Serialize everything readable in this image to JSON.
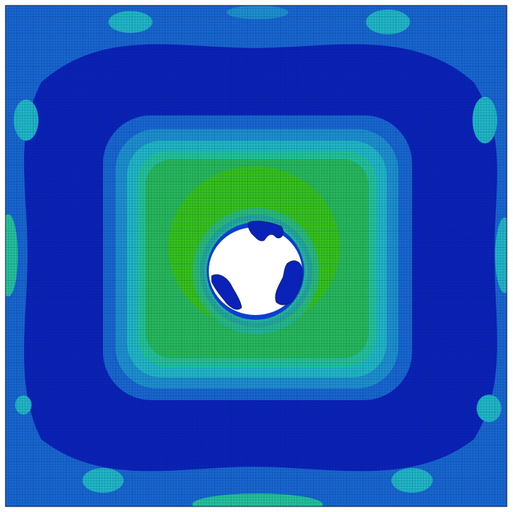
{
  "view": {
    "kind": "finite-element stress contour plot",
    "background": "#ffffff"
  },
  "mesh": {
    "edge_color": "#0a1a3a",
    "fine_grid": true
  },
  "colormap": {
    "levels": [
      {
        "name": "level-0",
        "color": "#0a22b8"
      },
      {
        "name": "level-1",
        "color": "#0c3fd0"
      },
      {
        "name": "level-2",
        "color": "#1766d0"
      },
      {
        "name": "level-3",
        "color": "#1c8fcf"
      },
      {
        "name": "level-4",
        "color": "#1fb6c6"
      },
      {
        "name": "level-5",
        "color": "#22c29a"
      },
      {
        "name": "level-6",
        "color": "#26b85a"
      },
      {
        "name": "level-7",
        "color": "#35c21c"
      }
    ]
  },
  "hole": {
    "fill": "#ffffff",
    "edge_debris_color": "#0a22b8"
  }
}
